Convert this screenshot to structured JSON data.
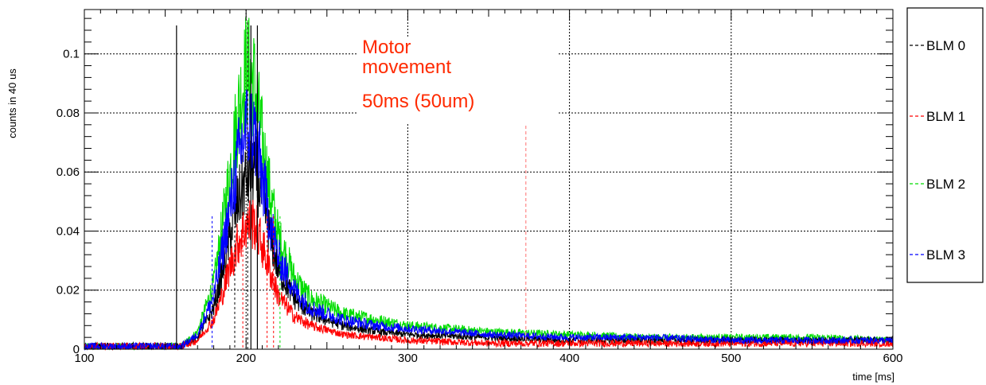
{
  "chart_data": {
    "type": "line",
    "xlabel": "time [ms]",
    "ylabel": "counts in 40 us",
    "xlim": [
      100,
      600
    ],
    "ylim": [
      0,
      0.115
    ],
    "x_ticks": [
      100,
      200,
      300,
      400,
      500,
      600
    ],
    "x_tick_labels": [
      "100",
      "200",
      "300",
      "400",
      "500",
      "600"
    ],
    "y_ticks": [
      0,
      0.02,
      0.04,
      0.06,
      0.08,
      0.1
    ],
    "y_tick_labels": [
      "0",
      "0.02",
      "0.04",
      "0.06",
      "0.08",
      "0.1"
    ],
    "grid": true,
    "legend_position": "right",
    "annotations": {
      "line1": "Motor",
      "line2": "movement",
      "line3": "50ms (50um)"
    },
    "markers": {
      "solid": [
        157,
        203,
        207
      ],
      "dashed": [
        201,
        373
      ]
    },
    "series": [
      {
        "name": "BLM 0",
        "color": "#000000",
        "x": [
          100,
          160,
          170,
          180,
          185,
          190,
          195,
          200,
          205,
          210,
          215,
          220,
          230,
          240,
          260,
          280,
          300,
          350,
          400,
          450,
          500,
          550,
          600
        ],
        "y": [
          0.001,
          0.001,
          0.004,
          0.014,
          0.025,
          0.038,
          0.05,
          0.058,
          0.062,
          0.052,
          0.038,
          0.027,
          0.017,
          0.012,
          0.008,
          0.006,
          0.005,
          0.004,
          0.003,
          0.003,
          0.003,
          0.003,
          0.003
        ]
      },
      {
        "name": "BLM 1",
        "color": "#ff0000",
        "x": [
          100,
          160,
          170,
          180,
          185,
          190,
          195,
          200,
          205,
          210,
          215,
          220,
          230,
          240,
          260,
          280,
          300,
          350,
          400,
          450,
          500,
          550,
          600
        ],
        "y": [
          0.001,
          0.001,
          0.003,
          0.01,
          0.018,
          0.028,
          0.036,
          0.042,
          0.043,
          0.035,
          0.026,
          0.018,
          0.011,
          0.008,
          0.005,
          0.004,
          0.003,
          0.002,
          0.002,
          0.002,
          0.002,
          0.002,
          0.002
        ]
      },
      {
        "name": "BLM 2",
        "color": "#00dd00",
        "x": [
          100,
          160,
          170,
          180,
          185,
          190,
          195,
          200,
          205,
          210,
          215,
          220,
          230,
          240,
          260,
          280,
          300,
          350,
          400,
          450,
          500,
          550,
          600
        ],
        "y": [
          0.001,
          0.001,
          0.006,
          0.022,
          0.04,
          0.06,
          0.08,
          0.095,
          0.09,
          0.07,
          0.052,
          0.038,
          0.024,
          0.017,
          0.012,
          0.01,
          0.008,
          0.006,
          0.005,
          0.004,
          0.004,
          0.004,
          0.003
        ]
      },
      {
        "name": "BLM 3",
        "color": "#0000ff",
        "x": [
          100,
          160,
          170,
          180,
          185,
          190,
          195,
          200,
          205,
          210,
          215,
          220,
          230,
          240,
          260,
          280,
          300,
          350,
          400,
          450,
          500,
          550,
          600
        ],
        "y": [
          0.001,
          0.001,
          0.005,
          0.018,
          0.032,
          0.048,
          0.064,
          0.075,
          0.074,
          0.058,
          0.043,
          0.031,
          0.02,
          0.014,
          0.01,
          0.008,
          0.007,
          0.005,
          0.004,
          0.004,
          0.003,
          0.003,
          0.003
        ]
      }
    ]
  }
}
